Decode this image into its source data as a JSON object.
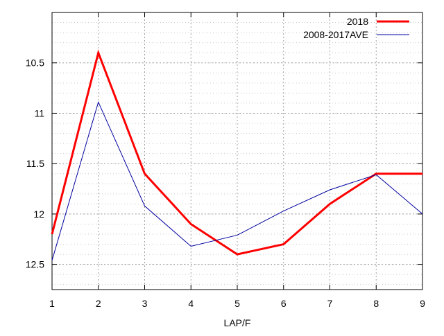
{
  "chart_data": {
    "type": "line",
    "title": "",
    "xlabel": "LAP/F",
    "ylabel": "",
    "x": [
      1,
      2,
      3,
      4,
      5,
      6,
      7,
      8,
      9
    ],
    "xlim": [
      1,
      9
    ],
    "ylim": [
      10.0,
      12.75
    ],
    "y_inverted": true,
    "x_ticks": [
      1,
      2,
      3,
      4,
      5,
      6,
      7,
      8,
      9
    ],
    "y_ticks": [
      10.5,
      11,
      11.5,
      12,
      12.5
    ],
    "y_tick_labels": [
      "10.5",
      "11",
      "11.5",
      "12",
      "12.5"
    ],
    "y_minor_step": 0.1,
    "grid": true,
    "legend_position": "top-right",
    "series": [
      {
        "name": "2018",
        "color": "#ff0000",
        "style": "thick",
        "values": [
          12.2,
          10.4,
          11.6,
          12.1,
          12.4,
          12.3,
          11.9,
          11.6,
          11.6
        ]
      },
      {
        "name": "2008-2017AVE",
        "color": "#0000a0",
        "style": "thin",
        "values": [
          12.46,
          10.89,
          11.92,
          12.32,
          12.21,
          11.97,
          11.76,
          11.61,
          12.0
        ]
      }
    ]
  }
}
